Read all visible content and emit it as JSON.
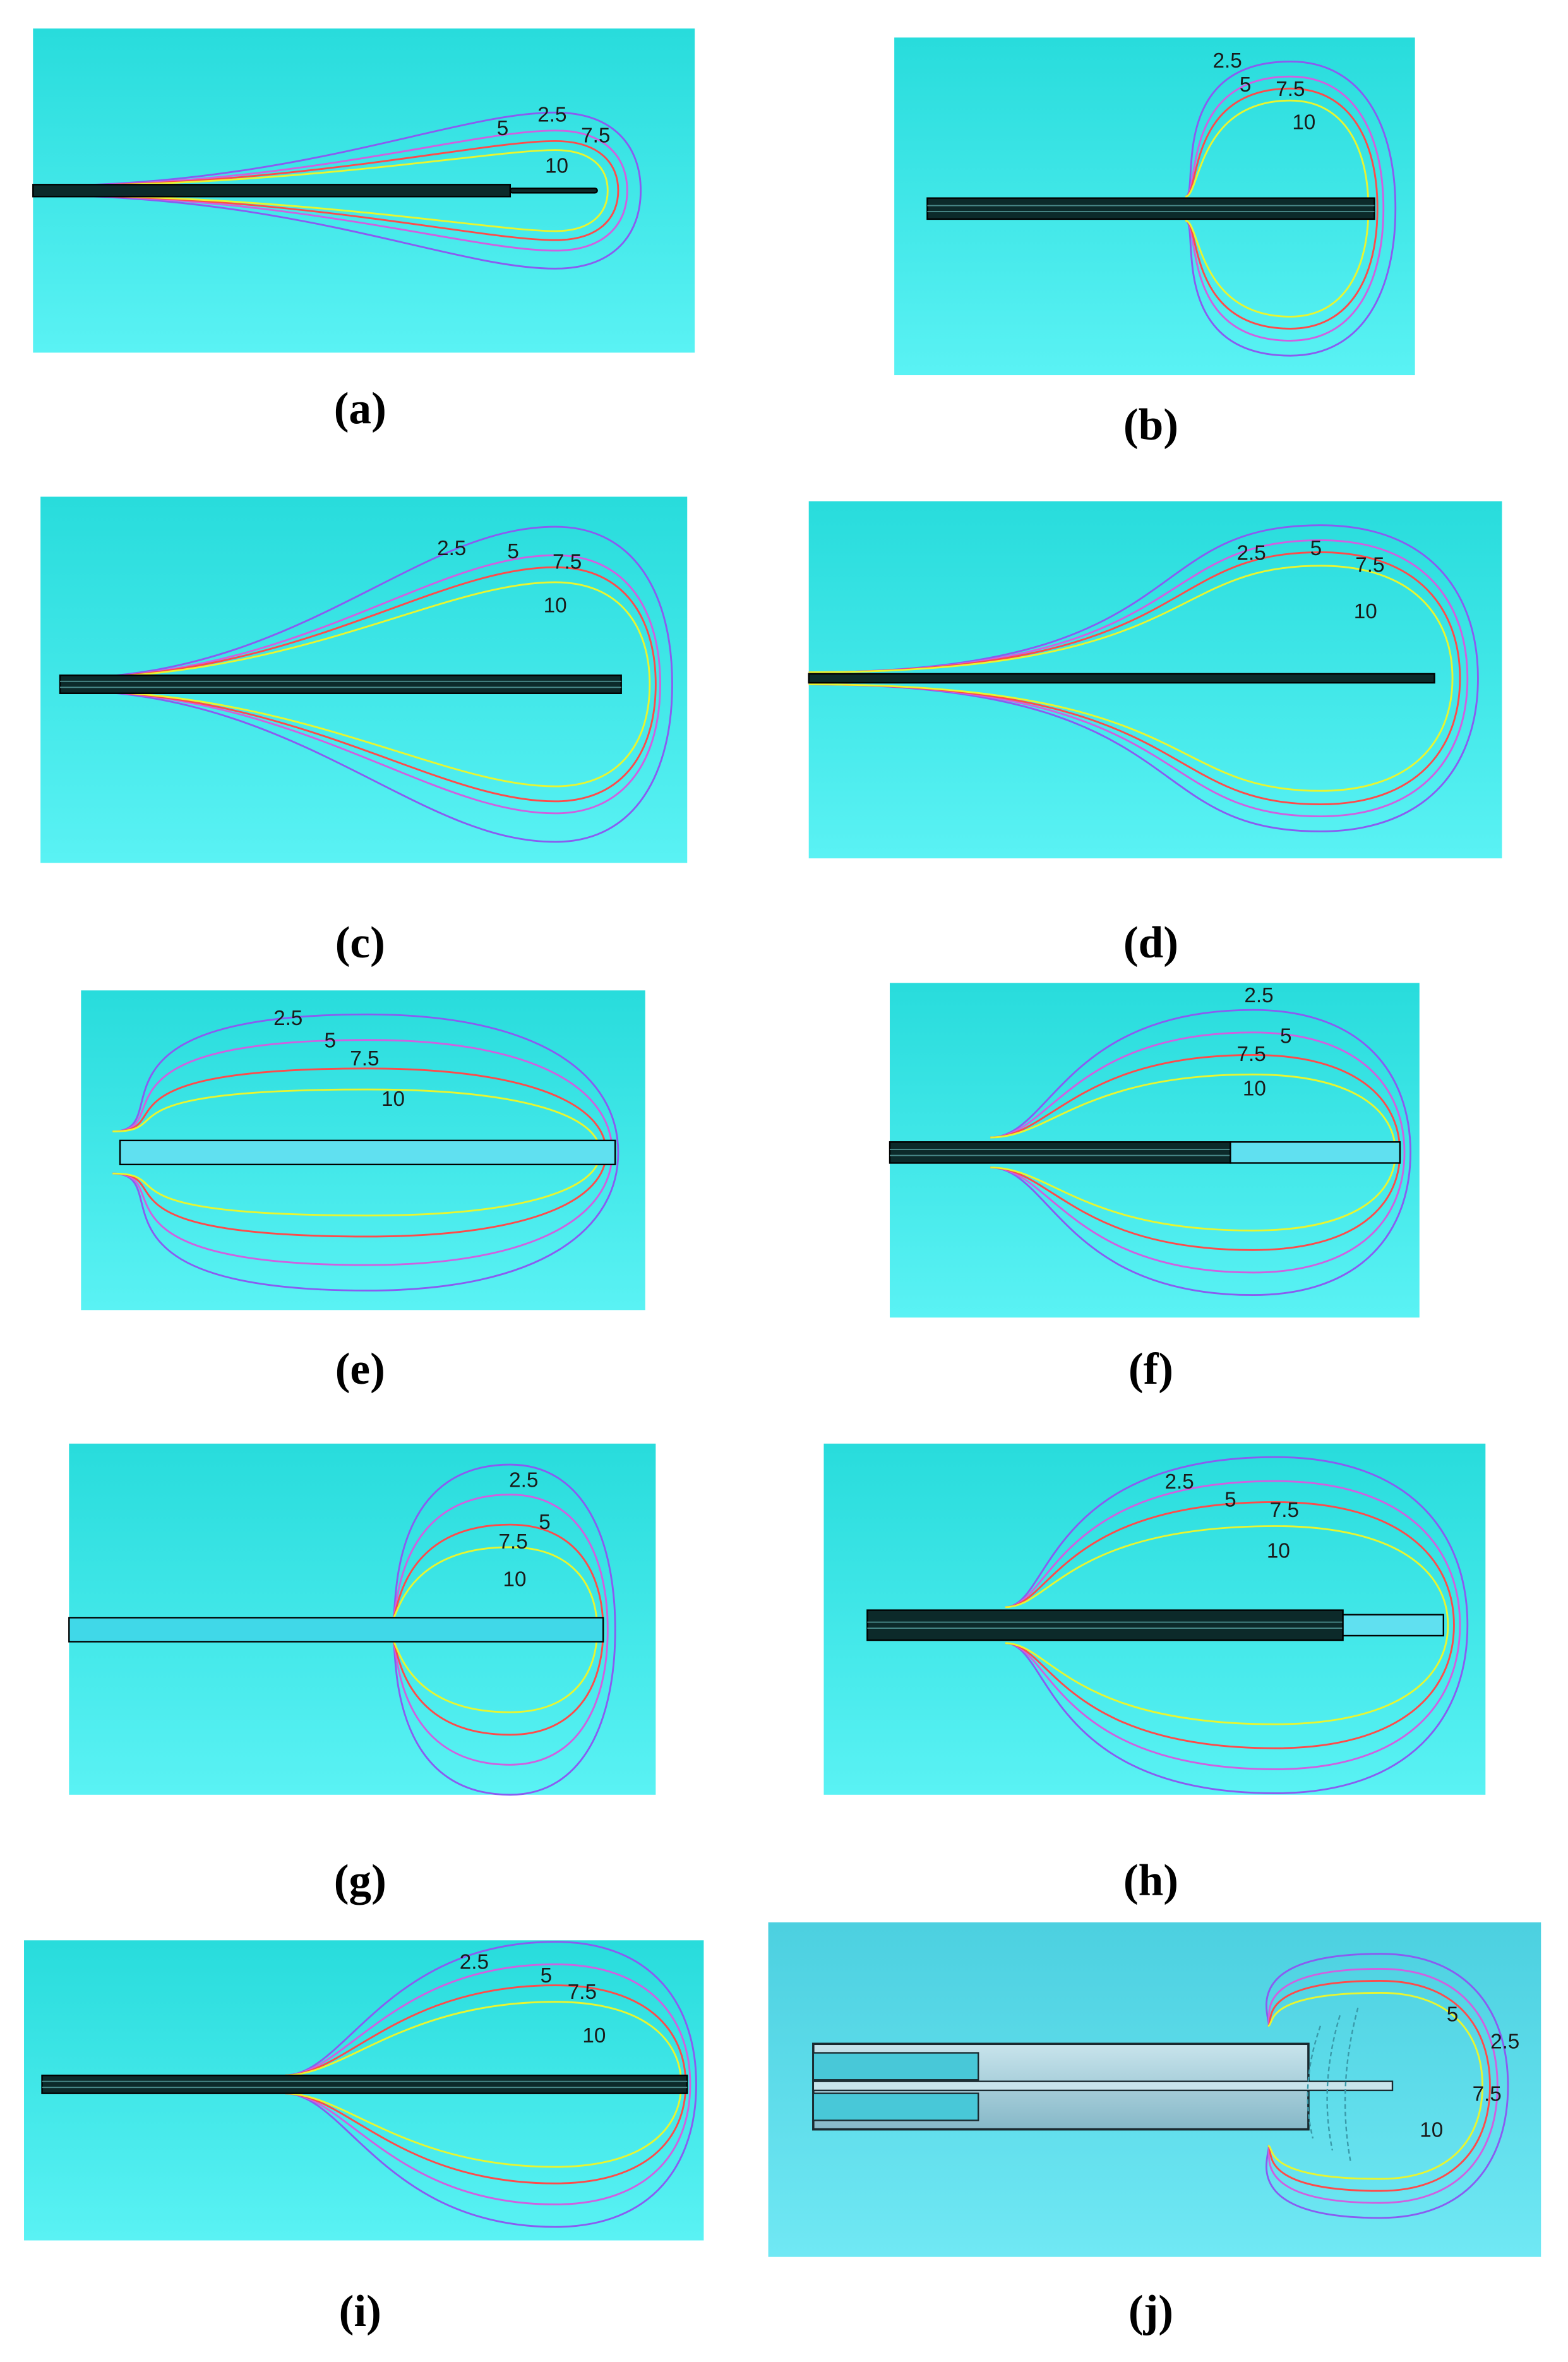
{
  "contour_colors": {
    "2.5": "#8a5cf0",
    "5": "#d060e0",
    "7.5": "#ff4a4a",
    "10": "#e8f530"
  },
  "background_colors": {
    "top": "#28dcdc",
    "bottom": "#5af2f4",
    "panel_j_top": "#4cd0e0",
    "panel_j_bottom": "#70e8f4"
  },
  "panels": [
    {
      "id": "a",
      "caption": "(a)",
      "contour_labels": [
        "2.5",
        "5",
        "7.5",
        "10"
      ]
    },
    {
      "id": "b",
      "caption": "(b)",
      "contour_labels": [
        "2.5",
        "5",
        "7.5",
        "10"
      ]
    },
    {
      "id": "c",
      "caption": "(c)",
      "contour_labels": [
        "2.5",
        "5",
        "7.5",
        "10"
      ]
    },
    {
      "id": "d",
      "caption": "(d)",
      "contour_labels": [
        "2.5",
        "5",
        "7.5",
        "10"
      ]
    },
    {
      "id": "e",
      "caption": "(e)",
      "contour_labels": [
        "2.5",
        "5",
        "7.5",
        "10"
      ]
    },
    {
      "id": "f",
      "caption": "(f)",
      "contour_labels": [
        "2.5",
        "5",
        "7.5",
        "10"
      ]
    },
    {
      "id": "g",
      "caption": "(g)",
      "contour_labels": [
        "2.5",
        "5",
        "7.5",
        "10"
      ]
    },
    {
      "id": "h",
      "caption": "(h)",
      "contour_labels": [
        "2.5",
        "5",
        "7.5",
        "10"
      ]
    },
    {
      "id": "i",
      "caption": "(i)",
      "contour_labels": [
        "2.5",
        "5",
        "7.5",
        "10"
      ]
    },
    {
      "id": "j",
      "caption": "(j)",
      "contour_labels": [
        "2.5",
        "5",
        "7.5",
        "10"
      ]
    }
  ]
}
